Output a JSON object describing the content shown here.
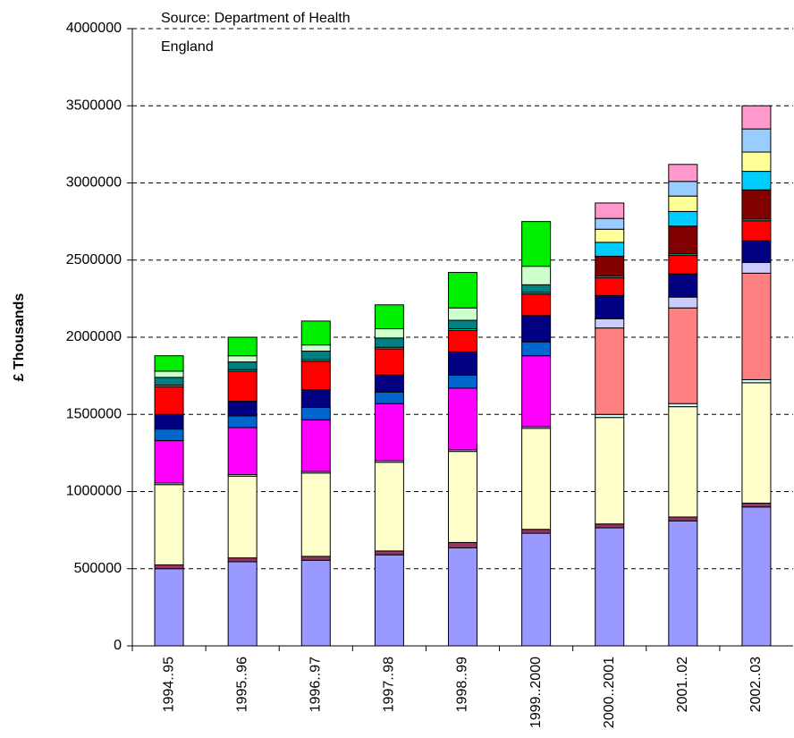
{
  "chart_data": {
    "type": "stacked_bar",
    "y_label": "£ Thousands",
    "annotations": [
      "Source: Department of Health",
      "England"
    ],
    "categories": [
      "1994..95",
      "1995..96",
      "1996..97",
      "1997..98",
      "1998..99",
      "1999..2000",
      "2000..2001",
      "2001..02",
      "2002..03"
    ],
    "series": [
      {
        "color": "#9999ff",
        "values": [
          500000,
          545000,
          555000,
          590000,
          635000,
          730000,
          765000,
          810000,
          900000
        ]
      },
      {
        "color": "#993366",
        "values": [
          25000,
          25000,
          25000,
          25000,
          35000,
          25000,
          25000,
          25000,
          25000
        ]
      },
      {
        "color": "#ffffcc",
        "values": [
          520000,
          530000,
          540000,
          575000,
          590000,
          655000,
          690000,
          715000,
          780000
        ]
      },
      {
        "color": "#ccffff",
        "values": [
          10000,
          10000,
          10000,
          10000,
          10000,
          10000,
          20000,
          20000,
          20000
        ]
      },
      {
        "color": "#ff8080",
        "values": [
          0,
          0,
          0,
          0,
          0,
          0,
          560000,
          620000,
          690000
        ]
      },
      {
        "color": "#ccccff",
        "values": [
          0,
          0,
          0,
          0,
          0,
          0,
          60000,
          70000,
          70000
        ]
      },
      {
        "color": "#ff00ff",
        "values": [
          275000,
          305000,
          335000,
          370000,
          400000,
          460000,
          0,
          0,
          0
        ]
      },
      {
        "color": "#0066cc",
        "values": [
          75000,
          75000,
          80000,
          75000,
          85000,
          90000,
          0,
          0,
          0
        ]
      },
      {
        "color": "#000080",
        "values": [
          95000,
          95000,
          115000,
          110000,
          150000,
          170000,
          150000,
          150000,
          140000
        ]
      },
      {
        "color": "#ff0000",
        "values": [
          180000,
          195000,
          185000,
          170000,
          140000,
          140000,
          115000,
          120000,
          130000
        ]
      },
      {
        "color": "#00ffcc",
        "values": [
          10000,
          10000,
          10000,
          10000,
          10000,
          10000,
          10000,
          10000,
          10000
        ]
      },
      {
        "color": "#800000",
        "values": [
          0,
          0,
          0,
          0,
          0,
          0,
          130000,
          180000,
          190000
        ]
      },
      {
        "color": "#00ccff",
        "values": [
          0,
          0,
          0,
          0,
          0,
          0,
          90000,
          95000,
          120000
        ]
      },
      {
        "color": "#ffff99",
        "values": [
          0,
          0,
          0,
          0,
          0,
          0,
          85000,
          100000,
          125000
        ]
      },
      {
        "color": "#99ccff",
        "values": [
          0,
          0,
          0,
          0,
          0,
          0,
          70000,
          95000,
          150000
        ]
      },
      {
        "color": "#ff99cc",
        "values": [
          0,
          0,
          0,
          0,
          0,
          0,
          100000,
          110000,
          150000
        ]
      },
      {
        "color": "#008080",
        "values": [
          50000,
          50000,
          55000,
          60000,
          55000,
          50000,
          0,
          0,
          0
        ]
      },
      {
        "color": "#ccffcc",
        "values": [
          40000,
          40000,
          40000,
          60000,
          80000,
          120000,
          0,
          0,
          0
        ]
      },
      {
        "color": "#00ee00",
        "values": [
          100000,
          120000,
          155000,
          155000,
          230000,
          290000,
          0,
          0,
          0
        ]
      }
    ],
    "ylim": [
      0,
      4000000
    ],
    "yticks": [
      0,
      500000,
      1000000,
      1500000,
      2000000,
      2500000,
      3000000,
      3500000,
      4000000
    ],
    "grid": true
  }
}
